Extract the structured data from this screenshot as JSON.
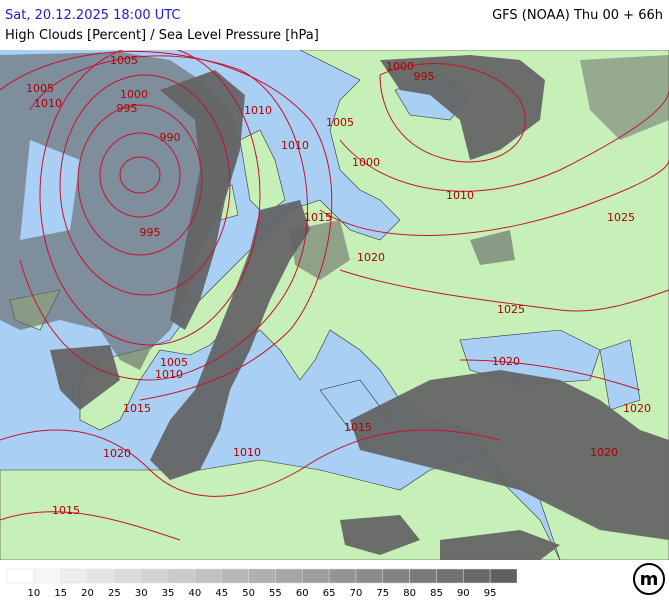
{
  "header": {
    "datetime": "Sat, 20.12.2025 18:00 UTC",
    "model": "GFS (NOAA) Thu 00 + 66h",
    "subtitle": "High Clouds [Percent] / Sea Level Pressure [hPa]"
  },
  "isobar_labels": [
    "1005",
    "1005",
    "1010",
    "1000",
    "995",
    "990",
    "995",
    "1010",
    "1010",
    "1005",
    "1000",
    "995",
    "1000",
    "1010",
    "1015",
    "1020",
    "1025",
    "1025",
    "1020",
    "1005",
    "1010",
    "1015",
    "1020",
    "1010",
    "1015",
    "1020",
    "1020",
    "1015"
  ],
  "legend": {
    "labels": [
      10,
      15,
      20,
      25,
      30,
      35,
      40,
      45,
      50,
      55,
      60,
      65,
      70,
      75,
      80,
      85,
      90,
      95
    ]
  },
  "logo": "m"
}
